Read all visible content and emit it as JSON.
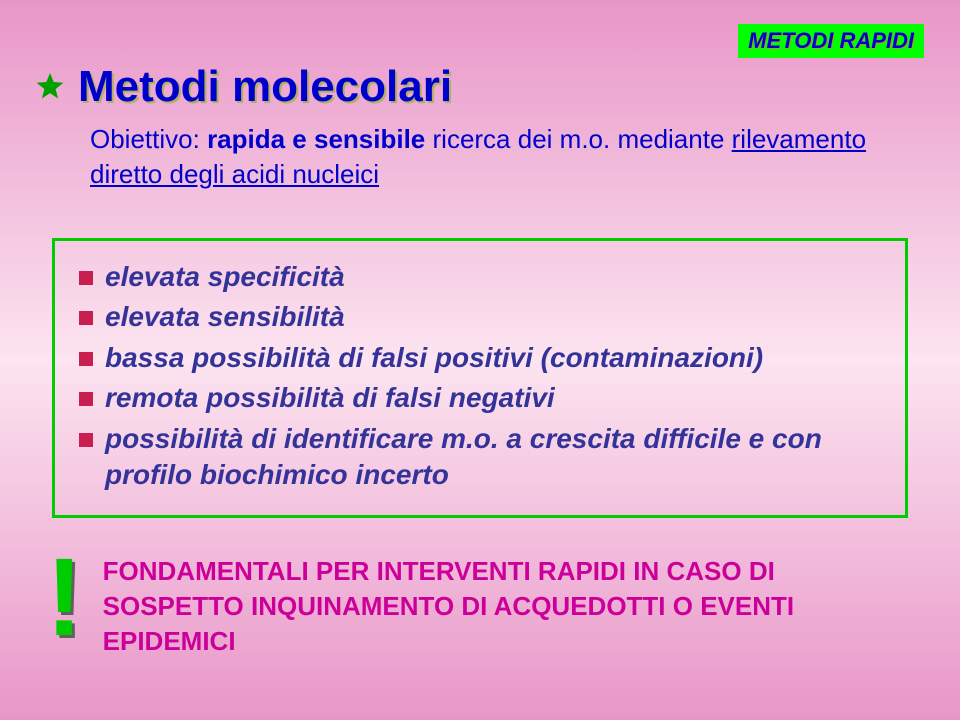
{
  "badge": "METODI RAPIDI",
  "title": "Metodi molecolari",
  "subtitle_pre": "Obiettivo: ",
  "subtitle_bold": "rapida e sensibile",
  "subtitle_mid": " ricerca dei m.o. mediante ",
  "subtitle_ul": "rilevamento diretto degli acidi nucleici",
  "features": {
    "f1": "elevata specificità",
    "f2": "elevata sensibilità",
    "f3": "bassa possibilità di falsi positivi (contaminazioni)",
    "f4": "remota possibilità di falsi negativi",
    "f5": "possibilità di identificare m.o. a crescita difficile e con profilo biochimico incerto"
  },
  "exclaim": "!",
  "callout": "FONDAMENTALI PER INTERVENTI RAPIDI IN CASO DI SOSPETTO INQUINAMENTO DI ACQUEDOTTI O EVENTI EPIDEMICI",
  "colors": {
    "badge_bg": "#00ff00",
    "badge_text": "#0000cc",
    "title_text": "#0000cc",
    "box_border": "#00cc00",
    "bullet_sq": "#c81e50",
    "feature_text": "#333399",
    "callout_text": "#cc0099",
    "star": "#00a000"
  }
}
